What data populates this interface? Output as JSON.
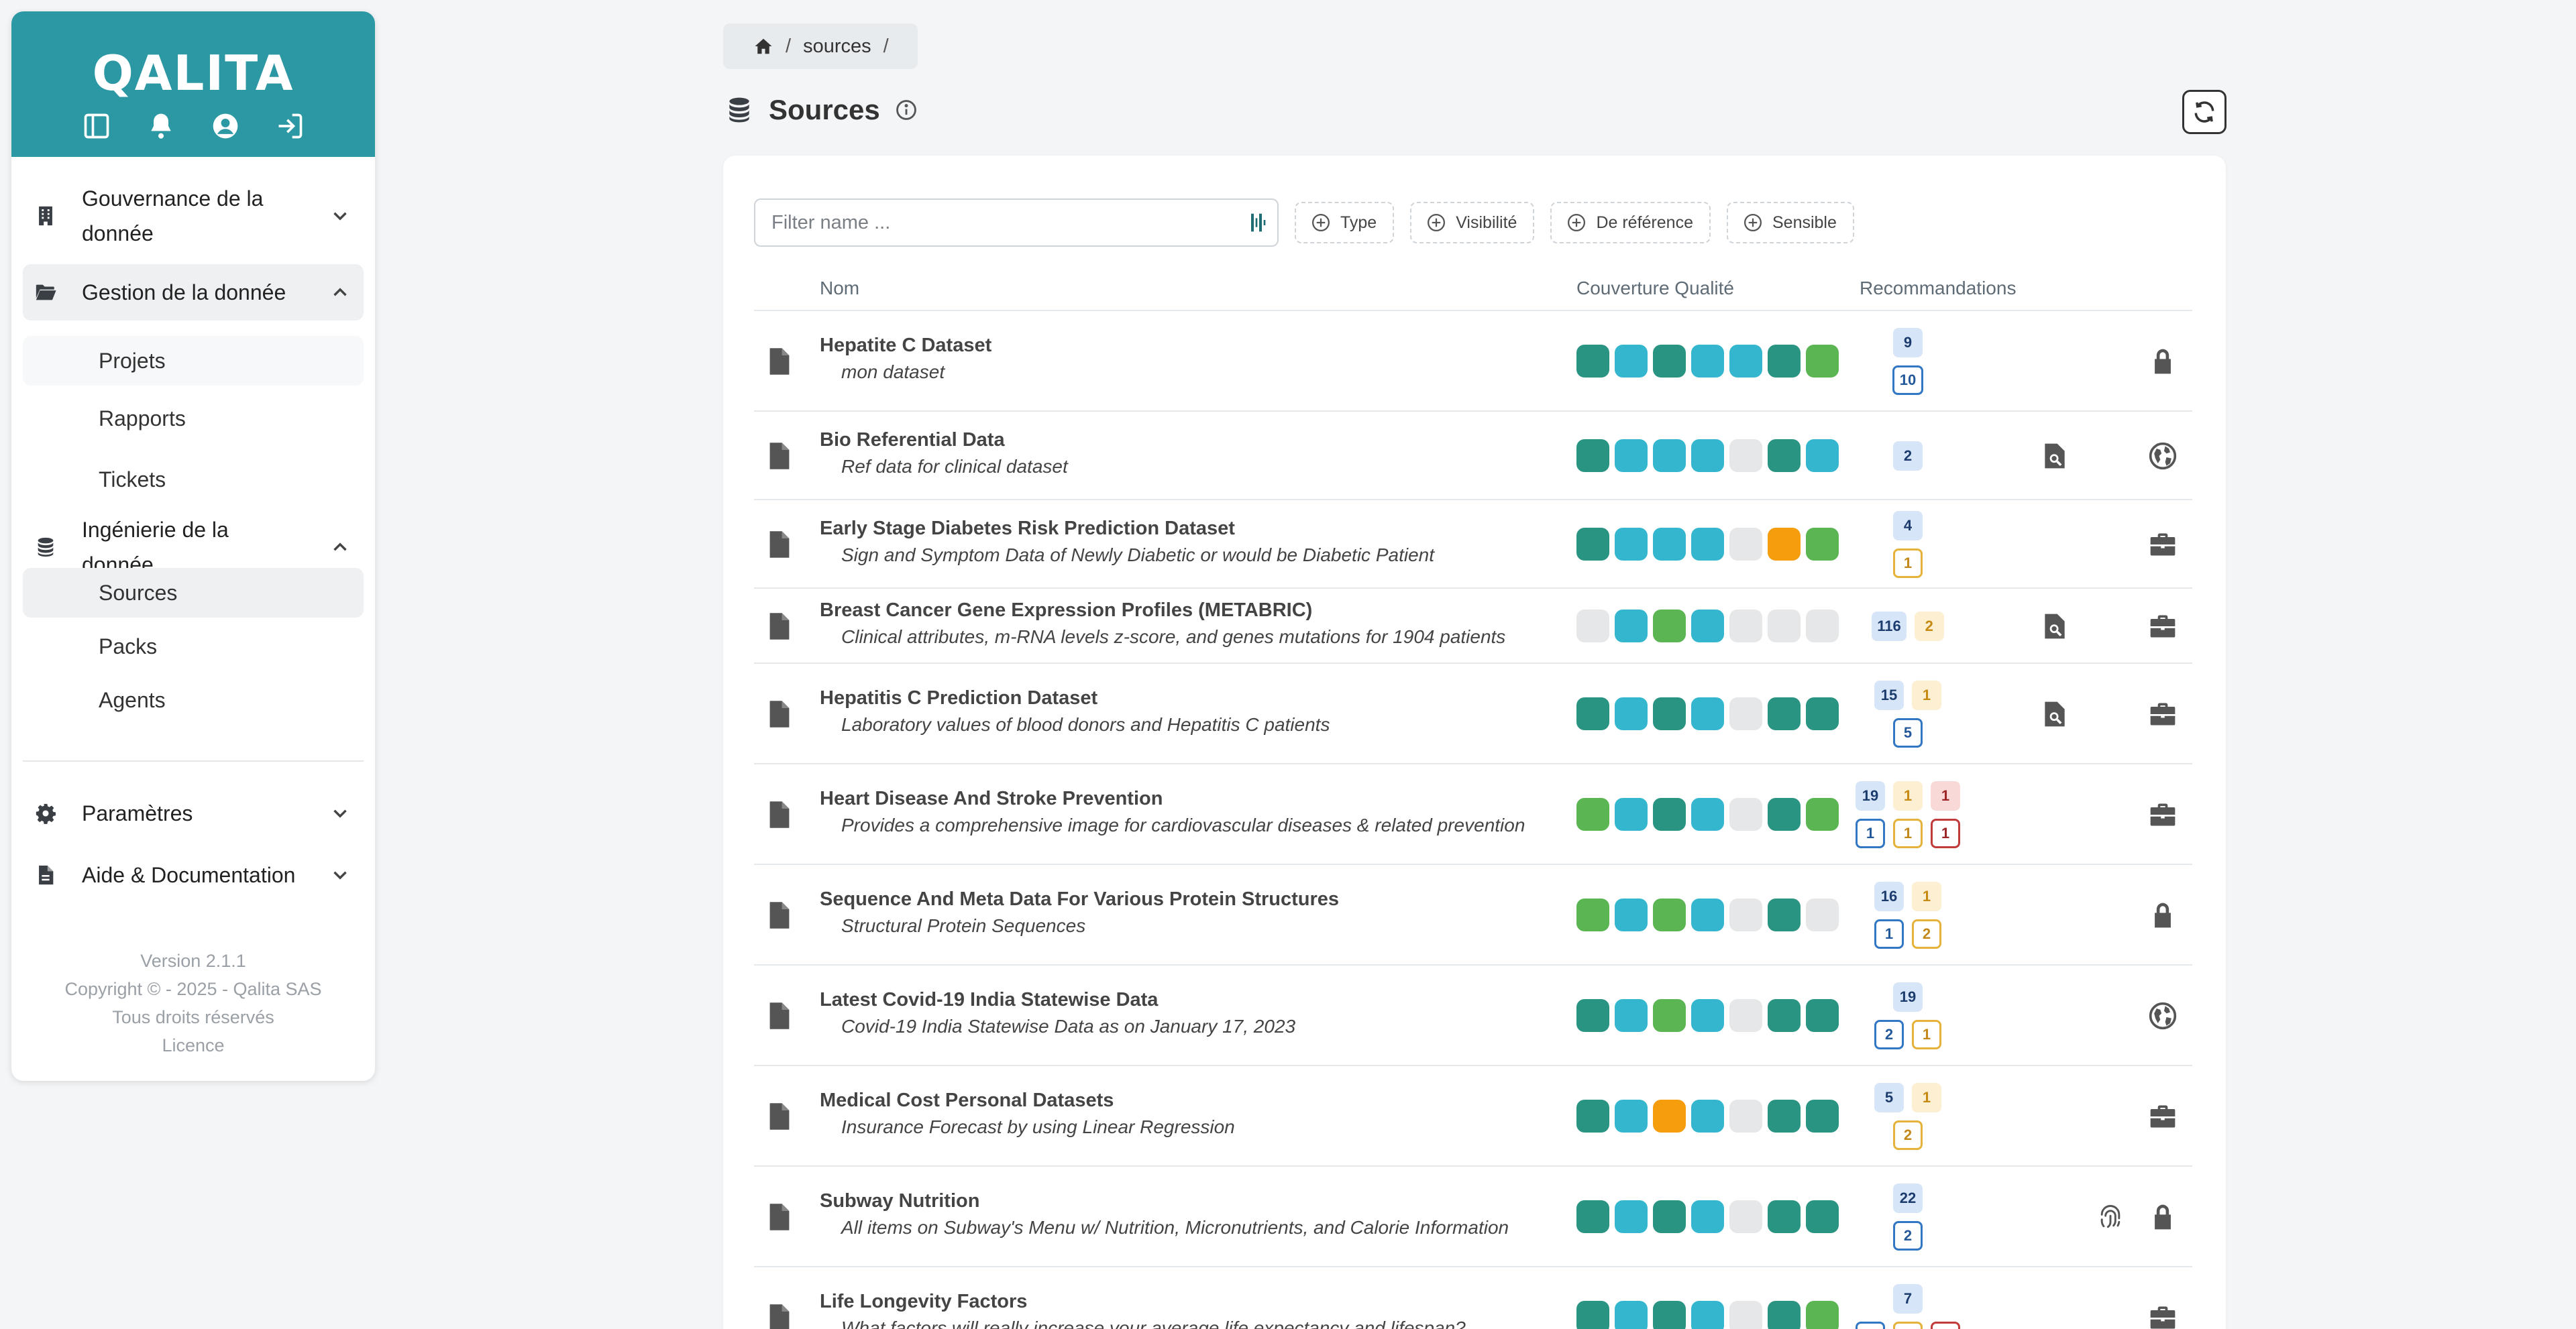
{
  "sidebar": {
    "logo": "QALITA",
    "top_icons": [
      "sidebar-toggle-icon",
      "bell-icon",
      "user-circle-icon",
      "sign-in-icon"
    ],
    "sections": [
      {
        "icon": "building-icon",
        "label": "Gouvernance de la donnée",
        "expanded": false
      },
      {
        "icon": "folder-open-icon",
        "label": "Gestion de la donnée",
        "expanded": true,
        "items": [
          "Projets",
          "Rapports",
          "Tickets"
        ]
      },
      {
        "icon": "database-icon",
        "label": "Ingénierie de la donnée",
        "expanded": true,
        "items": [
          "Sources",
          "Packs",
          "Agents"
        ],
        "active_item": "Sources"
      },
      {
        "icon": "gear-icon",
        "label": "Paramètres",
        "expanded": false
      },
      {
        "icon": "document-icon",
        "label": "Aide & Documentation",
        "expanded": false
      }
    ],
    "footer": {
      "version": "Version 2.1.1",
      "copyright": "Copyright © - 2025 - Qalita SAS",
      "rights": "Tous droits réservés",
      "licence": "Licence"
    }
  },
  "breadcrumb": {
    "items": [
      "sources"
    ]
  },
  "page": {
    "title": "Sources"
  },
  "filters": {
    "placeholder": "Filter name ...",
    "chips": [
      "Type",
      "Visibilité",
      "De référence",
      "Sensible"
    ]
  },
  "table": {
    "headers": {
      "name": "Nom",
      "quality": "Couverture Qualité",
      "recommendations": "Recommandations"
    },
    "colors": {
      "T": "#2a9482",
      "C": "#35b6cf",
      "G": "#5bb553",
      "O": "#f59d0c",
      "E": "#e6e7e8"
    },
    "rows": [
      {
        "name": "Hepatite C Dataset",
        "description": "mon dataset",
        "quality": "TCTCCTG",
        "recommendations": [
          [
            [
              "s-blue",
              "9"
            ]
          ],
          [
            [
              "o-blue",
              "10"
            ]
          ]
        ],
        "reference": false,
        "sensitive": false,
        "visibility": "lock-icon"
      },
      {
        "name": "Bio Referential Data",
        "description": "Ref data for clinical dataset",
        "quality": "TCCCETC",
        "recommendations": [
          [
            [
              "s-blue",
              "2"
            ]
          ]
        ],
        "reference": true,
        "sensitive": false,
        "visibility": "globe-icon"
      },
      {
        "name": "Early Stage Diabetes Risk Prediction Dataset",
        "description": "Sign and Symptom Data of Newly Diabetic or would be Diabetic Patient",
        "quality": "TCCCEOG",
        "recommendations": [
          [
            [
              "s-blue",
              "4"
            ]
          ],
          [
            [
              "o-yellow",
              "1"
            ]
          ]
        ],
        "reference": false,
        "sensitive": false,
        "visibility": "briefcase-icon"
      },
      {
        "name": "Breast Cancer Gene Expression Profiles (METABRIC)",
        "description": "Clinical attributes, m-RNA levels z-score, and genes mutations for 1904 patients",
        "quality": "ECGCEEE",
        "recommendations": [
          [
            [
              "s-blue",
              "116"
            ],
            [
              "s-yellow",
              "2"
            ]
          ]
        ],
        "reference": true,
        "sensitive": false,
        "visibility": "briefcase-icon"
      },
      {
        "name": "Hepatitis C Prediction Dataset",
        "description": "Laboratory values of blood donors and Hepatitis C patients",
        "quality": "TCTCETT",
        "recommendations": [
          [
            [
              "s-blue",
              "15"
            ],
            [
              "s-yellow",
              "1"
            ]
          ],
          [
            [
              "o-blue",
              "5"
            ]
          ]
        ],
        "reference": true,
        "sensitive": false,
        "visibility": "briefcase-icon"
      },
      {
        "name": "Heart Disease And Stroke Prevention",
        "description": "Provides a comprehensive image for cardiovascular diseases & related prevention",
        "quality": "GCTCETG",
        "recommendations": [
          [
            [
              "s-blue",
              "19"
            ],
            [
              "s-yellow",
              "1"
            ],
            [
              "s-red",
              "1"
            ]
          ],
          [
            [
              "o-blue",
              "1"
            ],
            [
              "o-yellow",
              "1"
            ],
            [
              "o-red",
              "1"
            ]
          ]
        ],
        "reference": false,
        "sensitive": false,
        "visibility": "briefcase-icon"
      },
      {
        "name": "Sequence And Meta Data For Various Protein Structures",
        "description": "Structural Protein Sequences",
        "quality": "GCGCETE",
        "recommendations": [
          [
            [
              "s-blue",
              "16"
            ],
            [
              "s-yellow",
              "1"
            ]
          ],
          [
            [
              "o-blue",
              "1"
            ],
            [
              "o-yellow",
              "2"
            ]
          ]
        ],
        "reference": false,
        "sensitive": false,
        "visibility": "lock-icon"
      },
      {
        "name": "Latest Covid-19 India Statewise Data",
        "description": "Covid-19 India Statewise Data as on January 17, 2023",
        "quality": "TCGCETT",
        "recommendations": [
          [
            [
              "s-blue",
              "19"
            ]
          ],
          [
            [
              "o-blue",
              "2"
            ],
            [
              "o-yellow",
              "1"
            ]
          ]
        ],
        "reference": false,
        "sensitive": false,
        "visibility": "globe-icon"
      },
      {
        "name": "Medical Cost Personal Datasets",
        "description": "Insurance Forecast by using Linear Regression",
        "quality": "TCOCETT",
        "recommendations": [
          [
            [
              "s-blue",
              "5"
            ],
            [
              "s-yellow",
              "1"
            ]
          ],
          [
            [
              "o-yellow",
              "2"
            ]
          ]
        ],
        "reference": false,
        "sensitive": false,
        "visibility": "briefcase-icon"
      },
      {
        "name": "Subway Nutrition",
        "description": "All items on Subway's Menu w/ Nutrition, Micronutrients, and Calorie Information",
        "quality": "TCTCETT",
        "recommendations": [
          [
            [
              "s-blue",
              "22"
            ]
          ],
          [
            [
              "o-blue",
              "2"
            ]
          ]
        ],
        "reference": false,
        "sensitive": true,
        "visibility": "lock-icon"
      },
      {
        "name": "Life Longevity Factors",
        "description": "What factors will really increase your average life expectancy and lifespan?",
        "quality": "TCTCETG",
        "recommendations": [
          [
            [
              "s-blue",
              "7"
            ]
          ],
          [
            [
              "o-blue",
              ""
            ],
            [
              "o-yellow",
              ""
            ],
            [
              "o-red",
              ""
            ]
          ]
        ],
        "reference": false,
        "sensitive": false,
        "visibility": "briefcase-icon"
      }
    ]
  }
}
